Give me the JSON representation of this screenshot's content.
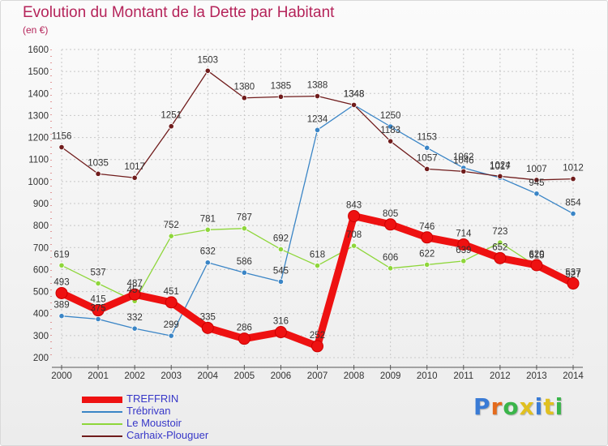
{
  "header": {
    "title": "Evolution du Montant de la Dette par Habitant",
    "unit": "(en €)"
  },
  "logo": {
    "text": "Proxiti",
    "colors": [
      "#3a7bd5",
      "#e46b1d",
      "#3ab54a",
      "#e0c020",
      "#3a7bd5",
      "#e0c020",
      "#3ab54a"
    ]
  },
  "chart_data": {
    "type": "line",
    "title": "Evolution du Montant de la Dette par Habitant",
    "subtitle": "(en €)",
    "x": [
      "2000",
      "2001",
      "2002",
      "2003",
      "2004",
      "2005",
      "2006",
      "2007",
      "2008",
      "2009",
      "2010",
      "2011",
      "2012",
      "2013",
      "2014"
    ],
    "ylim": [
      200,
      1600
    ],
    "yticks": [
      200,
      300,
      400,
      500,
      600,
      700,
      800,
      900,
      1000,
      1100,
      1200,
      1300,
      1400,
      1500,
      1600
    ],
    "grid": true,
    "legend_position": "bottom-left",
    "series": [
      {
        "name": "TREFFRIN",
        "color": "#ee1111",
        "bold": true,
        "values": [
          493,
          415,
          487,
          451,
          335,
          286,
          316,
          252,
          843,
          805,
          746,
          714,
          652,
          620,
          537
        ]
      },
      {
        "name": "Trébrivan",
        "color": "#3a85c6",
        "values": [
          389,
          375,
          332,
          299,
          632,
          586,
          545,
          1234,
          1348,
          1250,
          1153,
          1062,
          1017,
          945,
          854
        ]
      },
      {
        "name": "Le Moustoir",
        "color": "#8ed63a",
        "values": [
          619,
          537,
          457,
          752,
          781,
          787,
          692,
          618,
          708,
          606,
          622,
          639,
          723,
          615,
          527
        ]
      },
      {
        "name": "Carhaix-Plouguer",
        "color": "#701c1c",
        "values": [
          1156,
          1035,
          1017,
          1251,
          1503,
          1380,
          1385,
          1388,
          1348,
          1183,
          1057,
          1046,
          1024,
          1007,
          1012
        ]
      }
    ]
  }
}
